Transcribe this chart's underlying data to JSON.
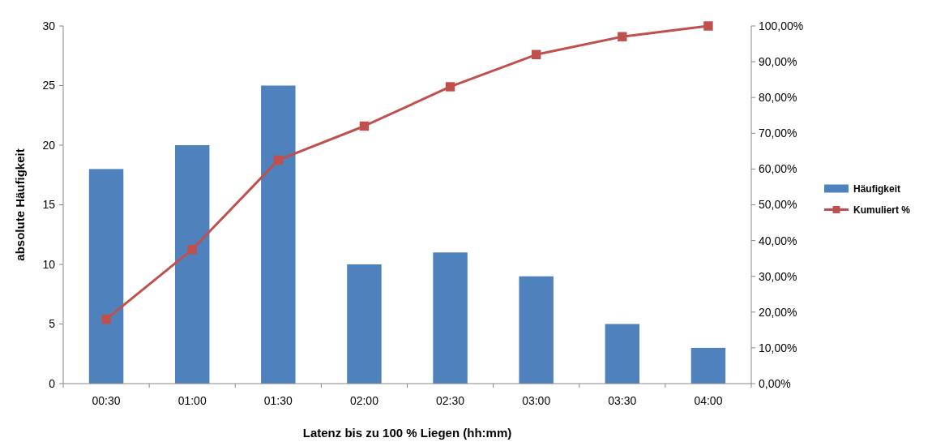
{
  "chart_data": {
    "type": "bar",
    "xlabel": "Latenz bis zu 100 % Liegen (hh:mm)",
    "ylabel": "absolute Häufigkeit",
    "categories": [
      "00:30",
      "01:00",
      "01:30",
      "02:00",
      "02:30",
      "03:00",
      "03:30",
      "04:00"
    ],
    "series": [
      {
        "name": "Häufigkeit",
        "color": "#4f81bd",
        "values": [
          18,
          20,
          25,
          10,
          11,
          9,
          5,
          3
        ]
      },
      {
        "name": "Kumuliert %",
        "type": "line",
        "axis": "y2",
        "color": "#c0504d",
        "marker": "square",
        "values": [
          18,
          37.5,
          62.5,
          72,
          83,
          92,
          97,
          100
        ]
      }
    ],
    "ylim": [
      0,
      30
    ],
    "yticks": [
      0,
      5,
      10,
      15,
      20,
      25,
      30
    ],
    "y2lim": [
      0,
      100
    ],
    "y2ticks": [
      {
        "value": 0,
        "label": "0,00%"
      },
      {
        "value": 10,
        "label": "10,00%"
      },
      {
        "value": 20,
        "label": "20,00%"
      },
      {
        "value": 30,
        "label": "30,00%"
      },
      {
        "value": 40,
        "label": "40,00%"
      },
      {
        "value": 50,
        "label": "50,00%"
      },
      {
        "value": 60,
        "label": "60,00%"
      },
      {
        "value": 70,
        "label": "70,00%"
      },
      {
        "value": 80,
        "label": "80,00%"
      },
      {
        "value": 90,
        "label": "90,00%"
      },
      {
        "value": 100,
        "label": "100,00%"
      }
    ],
    "legend": "right",
    "grid": false
  }
}
